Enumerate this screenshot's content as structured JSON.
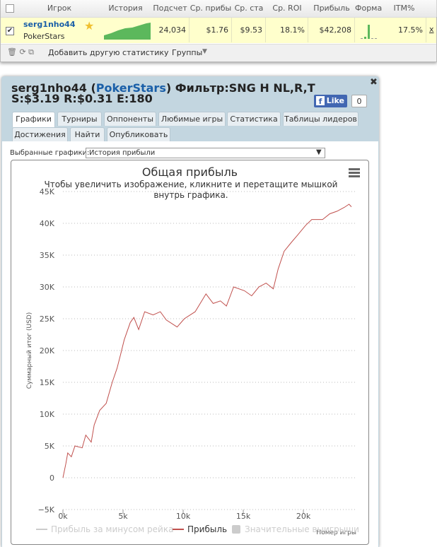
{
  "table": {
    "headers": [
      "Игрок",
      "История при",
      "Подсчет",
      "Ср. прибы",
      "Ср. ста",
      "Ср. ROI",
      "Прибыль",
      "Форма",
      "ITM%"
    ],
    "row": {
      "player": "serg1nho44",
      "site": "PokerStars",
      "count": "24,034",
      "avg_profit": "$1.76",
      "avg_stake": "$9.53",
      "roi": "18.1%",
      "profit": "$42,208",
      "itm": "17.5%",
      "remove": "x"
    },
    "toolbar": {
      "add": "Добавить другую статистику",
      "groups": "Группы"
    }
  },
  "panel": {
    "title": [
      "serg1nho44 (",
      "PokerStars",
      ") Фильтр:SNG H NL,R,T S:$3.19 R:$0.31 E:180"
    ],
    "like": "Like",
    "like_count": "0",
    "tabs": [
      "Графики",
      "Турниры",
      "Оппоненты",
      "Любимые игры",
      "Статистика",
      "Таблицы лидеров",
      "Достижения",
      "Найти",
      "Опубликовать"
    ],
    "selector_label": "Выбранные графики:",
    "selector_value": "История прибыли"
  },
  "chart_data": {
    "type": "line",
    "title": "Общая прибыль",
    "subtitle": "Чтобы увеличить изображение, кликните и перетащите мышкой внутрь графика.",
    "x_label": "Номер игры",
    "y_label": "Суммарный итог (USD)",
    "grid": true,
    "xlim": [
      0,
      24350
    ],
    "ylim": [
      -5000,
      45000
    ],
    "xticks": [
      {
        "value": 0,
        "label": "0k"
      },
      {
        "value": 5000,
        "label": "5k"
      },
      {
        "value": 10000,
        "label": "10k"
      },
      {
        "value": 15000,
        "label": "15k"
      },
      {
        "value": 20000,
        "label": "20k"
      }
    ],
    "yticks": [
      {
        "value": -5000,
        "label": "−5K"
      },
      0,
      {
        "value": 5000,
        "label": "5K"
      },
      {
        "value": 10000,
        "label": "10K"
      },
      {
        "value": 15000,
        "label": "15K"
      },
      {
        "value": 20000,
        "label": "20K"
      },
      {
        "value": 25000,
        "label": "25K"
      },
      {
        "value": 30000,
        "label": "30K"
      },
      {
        "value": 35000,
        "label": "35K"
      },
      {
        "value": 40000,
        "label": "40K"
      },
      {
        "value": 45000,
        "label": "45K"
      }
    ],
    "series": [
      {
        "name": "Прибыль за минусом рейка",
        "color": "#cccccc",
        "visible": false,
        "symbol": "line"
      },
      {
        "name": "Прибыль",
        "color": "#c0504d",
        "visible": true,
        "symbol": "line",
        "x": [
          0,
          240,
          400,
          700,
          1000,
          1600,
          1900,
          2350,
          2600,
          3060,
          3600,
          4100,
          4500,
          4800,
          5100,
          5600,
          5900,
          6300,
          6800,
          7500,
          8100,
          8600,
          9500,
          10100,
          11000,
          11900,
          12500,
          13100,
          13600,
          14200,
          15100,
          15700,
          16300,
          16900,
          17500,
          17900,
          18400,
          19000,
          19500,
          20200,
          20700,
          21600,
          22200,
          22800,
          23400,
          23800,
          24000
        ],
        "values": [
          0,
          2200,
          3900,
          3300,
          5000,
          4700,
          6700,
          5600,
          8300,
          10600,
          11700,
          15000,
          17200,
          19400,
          21700,
          24400,
          25200,
          23300,
          26100,
          25600,
          26100,
          24800,
          23700,
          25000,
          26100,
          28900,
          27400,
          27800,
          27000,
          30000,
          29400,
          28600,
          30000,
          30600,
          29700,
          32800,
          35600,
          37000,
          38100,
          39700,
          40600,
          40600,
          41500,
          41900,
          42500,
          43000,
          42600
        ]
      },
      {
        "name": "Значительные выигрыши",
        "color": "#cccccc",
        "visible": false,
        "symbol": "square"
      }
    ]
  }
}
